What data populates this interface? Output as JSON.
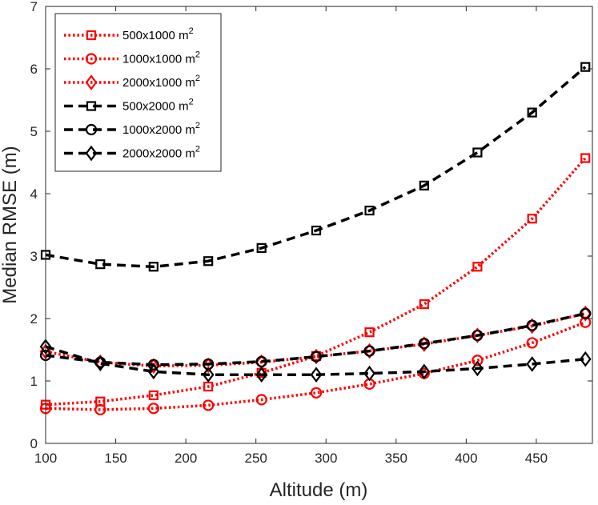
{
  "chart_data": {
    "type": "line",
    "title": "",
    "xlabel": "Altitude (m)",
    "ylabel": "Median RMSE (m)",
    "xlim": [
      100,
      490
    ],
    "ylim": [
      0,
      7
    ],
    "xticks": [
      100,
      150,
      200,
      250,
      300,
      350,
      400,
      450
    ],
    "yticks": [
      0,
      1,
      2,
      3,
      4,
      5,
      6,
      7
    ],
    "x": [
      100,
      139,
      177,
      216,
      254,
      293,
      331,
      370,
      408,
      447,
      485
    ],
    "series": [
      {
        "name": "500x1000",
        "unit": "m",
        "exp": "2",
        "color": "#ff0000",
        "style": "dotted",
        "marker": "square",
        "values": [
          0.62,
          0.67,
          0.77,
          0.91,
          1.13,
          1.4,
          1.78,
          2.23,
          2.83,
          3.6,
          4.57
        ]
      },
      {
        "name": "1000x1000",
        "unit": "m",
        "exp": "2",
        "color": "#ff0000",
        "style": "dotted",
        "marker": "circle",
        "values": [
          0.56,
          0.54,
          0.56,
          0.61,
          0.7,
          0.81,
          0.95,
          1.12,
          1.33,
          1.61,
          1.94
        ]
      },
      {
        "name": "2000x1000",
        "unit": "m",
        "exp": "2",
        "color": "#ff0000",
        "style": "dotted",
        "marker": "diamond",
        "values": [
          1.47,
          1.3,
          1.24,
          1.25,
          1.3,
          1.39,
          1.48,
          1.59,
          1.73,
          1.88,
          2.08
        ]
      },
      {
        "name": "500x2000",
        "unit": "m",
        "exp": "2",
        "color": "#000000",
        "style": "dashed",
        "marker": "square",
        "values": [
          3.02,
          2.87,
          2.83,
          2.92,
          3.13,
          3.41,
          3.73,
          4.13,
          4.66,
          5.3,
          6.03
        ]
      },
      {
        "name": "1000x2000",
        "unit": "m",
        "exp": "2",
        "color": "#000000",
        "style": "dashed",
        "marker": "circle",
        "values": [
          1.41,
          1.3,
          1.26,
          1.27,
          1.31,
          1.39,
          1.48,
          1.6,
          1.73,
          1.89,
          2.08
        ]
      },
      {
        "name": "2000x2000",
        "unit": "m",
        "exp": "2",
        "color": "#000000",
        "style": "dashed",
        "marker": "diamond",
        "values": [
          1.55,
          1.28,
          1.15,
          1.1,
          1.1,
          1.1,
          1.12,
          1.15,
          1.2,
          1.27,
          1.35
        ]
      }
    ],
    "legend_position": "top-left",
    "grid": false
  }
}
